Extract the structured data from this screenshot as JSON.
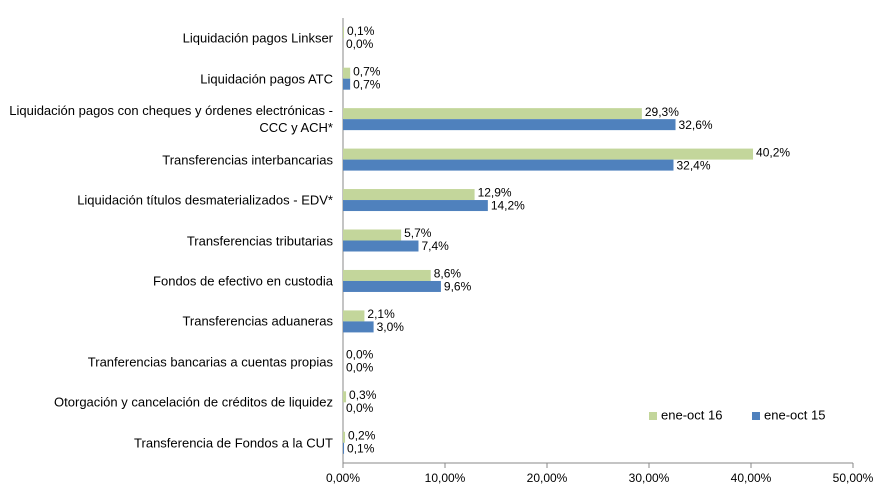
{
  "chart_data": {
    "type": "bar",
    "orientation": "horizontal",
    "categories": [
      "Liquidación pagos Linkser",
      "Liquidación pagos ATC",
      "Liquidación pagos con cheques y órdenes electrónicas - CCC y ACH*",
      "Transferencias interbancarias",
      "Liquidación títulos desmaterializados - EDV*",
      "Transferencias tributarias",
      "Fondos de efectivo en custodia",
      "Transferencias aduaneras",
      "Tranferencias bancarias a cuentas propias",
      "Otorgación y cancelación de créditos de liquidez",
      "Transferencia de Fondos a la CUT"
    ],
    "series": [
      {
        "name": "ene-oct 16",
        "color": "#c3d69b",
        "label_color": "#77933c",
        "values": [
          0.1,
          0.7,
          29.3,
          40.2,
          12.9,
          5.7,
          8.6,
          2.1,
          0.0,
          0.3,
          0.2
        ],
        "value_labels": [
          "0,1%",
          "0,7%",
          "29,3%",
          "40,2%",
          "12,9%",
          "5,7%",
          "8,6%",
          "2,1%",
          "0,0%",
          "0,3%",
          "0,2%"
        ]
      },
      {
        "name": "ene-oct 15",
        "color": "#4f81bd",
        "label_color": "#1f497d",
        "values": [
          0.0,
          0.7,
          32.6,
          32.4,
          14.2,
          7.4,
          9.6,
          3.0,
          0.0,
          0.0,
          0.1
        ],
        "value_labels": [
          "0,0%",
          "0,7%",
          "32,6%",
          "32,4%",
          "14,2%",
          "7,4%",
          "9,6%",
          "3,0%",
          "0,0%",
          "0,0%",
          "0,1%"
        ]
      }
    ],
    "xlim": [
      0,
      50
    ],
    "xticks": [
      {
        "value": 0,
        "label": "0,00%"
      },
      {
        "value": 10,
        "label": "10,00%"
      },
      {
        "value": 20,
        "label": "20,00%"
      },
      {
        "value": 30,
        "label": "30,00%"
      },
      {
        "value": 40,
        "label": "40,00%"
      },
      {
        "value": 50,
        "label": "50,00%"
      }
    ],
    "legend": "lower-right"
  }
}
